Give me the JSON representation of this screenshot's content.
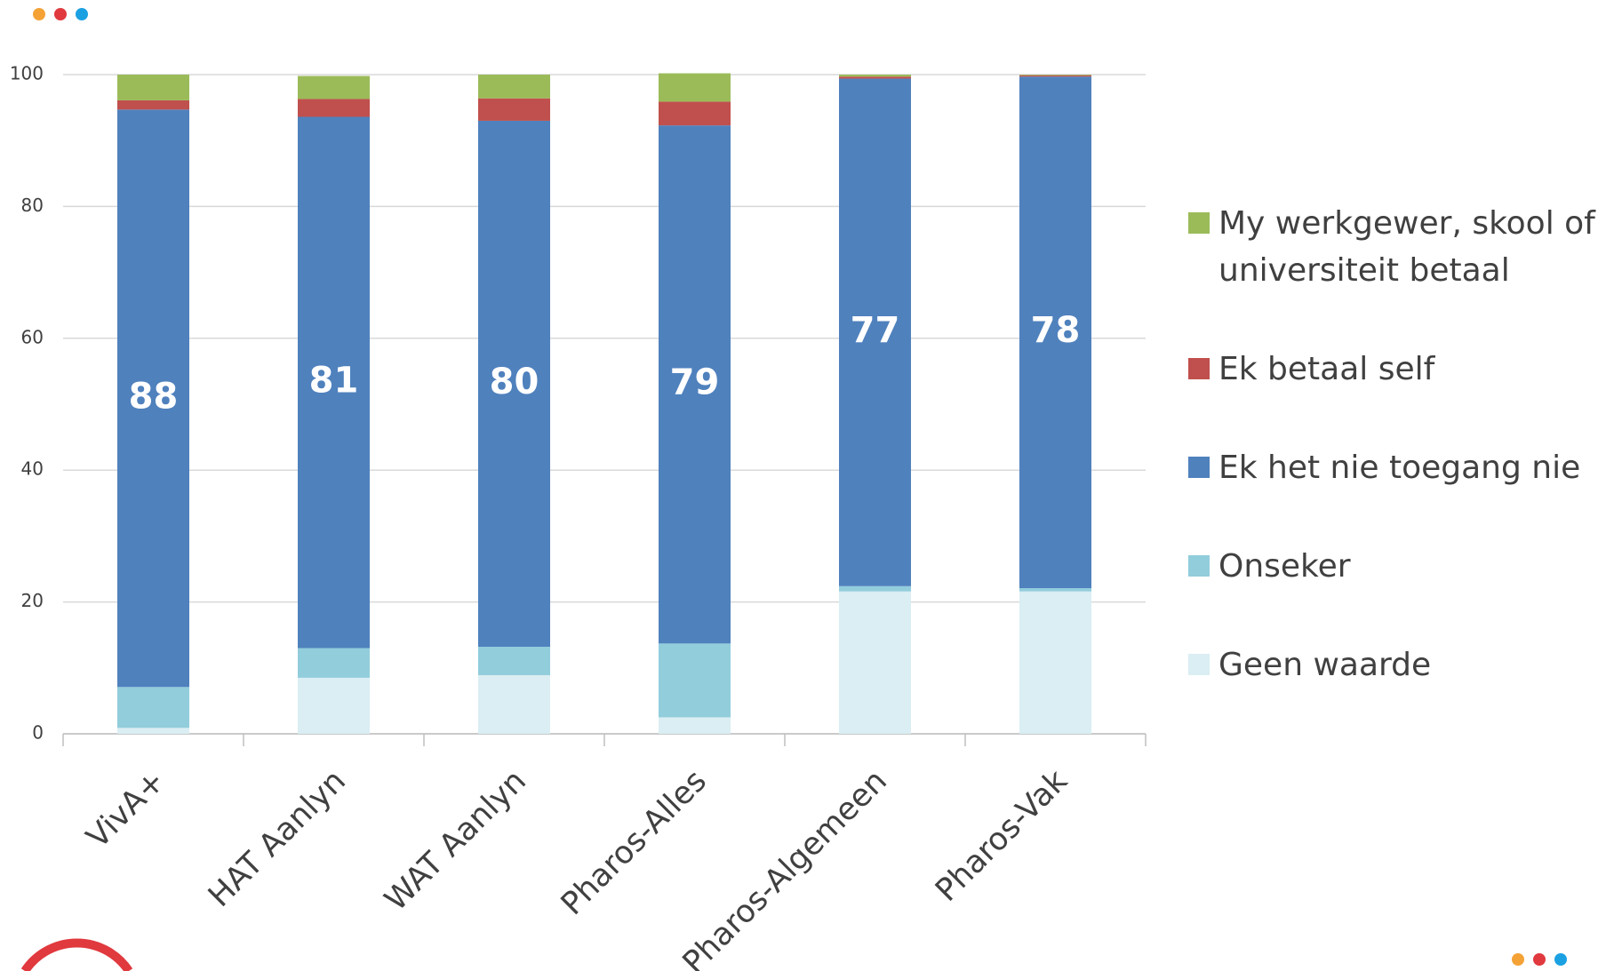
{
  "chart_data": {
    "type": "stacked_bar",
    "categories": [
      "VivA+",
      "HAT Aanlyn",
      "WAT Aanlyn",
      "Pharos-Alles",
      "Pharos-Algemeen",
      "Pharos-Vak"
    ],
    "series": [
      {
        "name": "Geen waarde",
        "color": "#daeef3",
        "values": [
          0.9,
          8.5,
          8.9,
          2.5,
          21.6,
          21.6
        ]
      },
      {
        "name": "Onseker",
        "color": "#92cddc",
        "values": [
          6.2,
          4.5,
          4.3,
          11.2,
          0.8,
          0.5
        ]
      },
      {
        "name": "Ek het nie toegang nie",
        "color": "#4f81bd",
        "values": [
          87.6,
          80.6,
          79.8,
          78.6,
          77.0,
          77.6
        ],
        "value_labels": [
          "88",
          "81",
          "80",
          "79",
          "77",
          "78"
        ]
      },
      {
        "name": "Ek betaal self",
        "color": "#c0504d",
        "values": [
          1.4,
          2.7,
          3.4,
          3.6,
          0.3,
          0.2
        ]
      },
      {
        "name": "My werkgewer, skool of universiteit betaal",
        "color": "#9bbb59",
        "values": [
          3.9,
          3.5,
          3.6,
          4.3,
          0.3,
          0.1
        ]
      }
    ],
    "ylim": [
      0,
      100
    ],
    "yticks": [
      0,
      20,
      40,
      60,
      80,
      100
    ],
    "grid": true,
    "legend": "right"
  }
}
